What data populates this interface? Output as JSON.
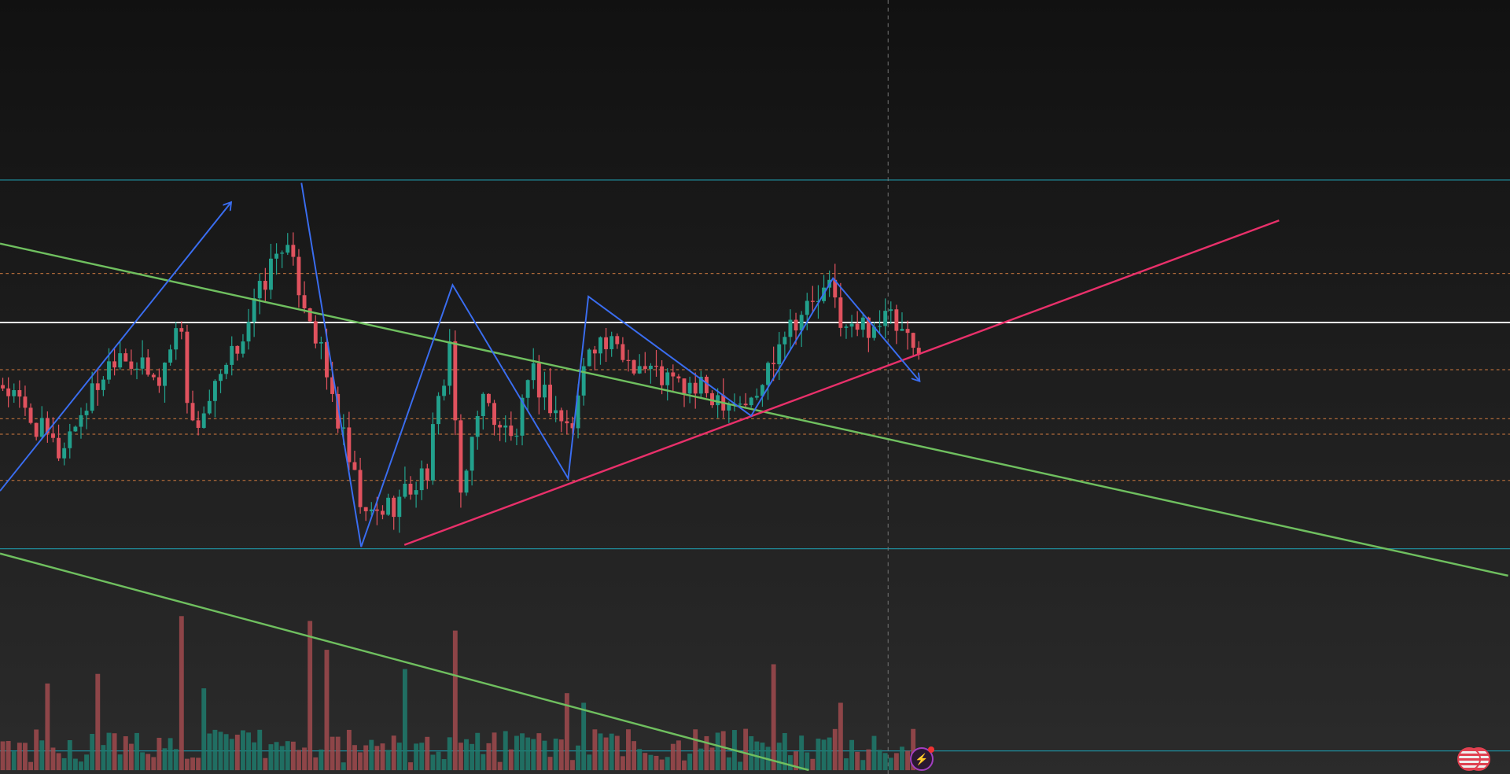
{
  "chart_data": {
    "type": "candlestick",
    "title": "",
    "x_units": "bars",
    "y_units": "price",
    "xlim": [
      0,
      270
    ],
    "ylim": [
      4,
      804
    ],
    "colors": {
      "up": "#22a08c",
      "down": "#e0525e",
      "up_vol": "#1f7a6c",
      "down_vol": "#a04a4e",
      "blue": "#3a6df0",
      "green": "#6fbf5f",
      "pink": "#e8306a",
      "cyan": "#1f8a99",
      "orange": "#b06a3a",
      "white": "#ffffff"
    },
    "price_path": [
      [
        0,
        404
      ],
      [
        10,
        334
      ],
      [
        20.7,
        444
      ],
      [
        27.6,
        404
      ],
      [
        31.9,
        474
      ],
      [
        33.6,
        354
      ],
      [
        39.7,
        414
      ],
      [
        50,
        554
      ],
      [
        55.2,
        474
      ],
      [
        64.7,
        264
      ],
      [
        70.7,
        284
      ],
      [
        75.9,
        314
      ],
      [
        80.2,
        454
      ],
      [
        81.9,
        274
      ],
      [
        85.3,
        394
      ],
      [
        91.4,
        344
      ],
      [
        94.8,
        414
      ],
      [
        101.7,
        354
      ],
      [
        105.2,
        454
      ],
      [
        120.7,
        404
      ],
      [
        134.5,
        384
      ],
      [
        139.7,
        464
      ],
      [
        148.3,
        504
      ],
      [
        150.9,
        459
      ],
      [
        158.6,
        474
      ],
      [
        164.7,
        424
      ]
    ],
    "volume_spikes": [
      [
        8,
        90
      ],
      [
        17,
        100
      ],
      [
        32,
        160
      ],
      [
        36,
        85
      ],
      [
        55,
        155
      ],
      [
        58,
        125
      ],
      [
        72,
        105
      ],
      [
        81,
        145
      ],
      [
        101,
        80
      ],
      [
        104,
        70
      ],
      [
        138,
        110
      ],
      [
        150,
        70
      ]
    ],
    "horizontal_levels": [
      {
        "price": 617,
        "style": "cyan"
      },
      {
        "price": 469,
        "style": "white"
      },
      {
        "price": 234,
        "style": "cyan"
      },
      {
        "price": 24,
        "style": "cyan"
      },
      {
        "price": 520,
        "style": "orange-dashed"
      },
      {
        "price": 420,
        "style": "orange-dashed"
      },
      {
        "price": 369,
        "style": "orange-dashed"
      },
      {
        "price": 353,
        "style": "orange-dashed"
      },
      {
        "price": 305,
        "style": "orange-dashed"
      }
    ],
    "trendlines": [
      {
        "name": "upper-green-trendline",
        "color": "green",
        "from": [
          0,
          551
        ],
        "to": [
          270,
          206
        ]
      },
      {
        "name": "lower-green-trendline",
        "color": "green",
        "from": [
          0,
          229
        ],
        "to": [
          144.8,
          4
        ]
      },
      {
        "name": "pink-support-trendline",
        "color": "pink",
        "from": [
          72.4,
          238
        ],
        "to": [
          229,
          575
        ]
      }
    ],
    "zigzag": [
      [
        53.97,
        614
      ],
      [
        64.66,
        236
      ],
      [
        81.03,
        508
      ],
      [
        101.72,
        307
      ],
      [
        105.34,
        496
      ],
      [
        134.48,
        372
      ],
      [
        149.14,
        515
      ],
      [
        164.66,
        408
      ]
    ],
    "arrow": [
      [
        0,
        294
      ],
      [
        41.4,
        594
      ]
    ],
    "crosshair_x": 159
  },
  "events": {
    "bolt": "earnings-event",
    "flag": "us-economic-event"
  }
}
